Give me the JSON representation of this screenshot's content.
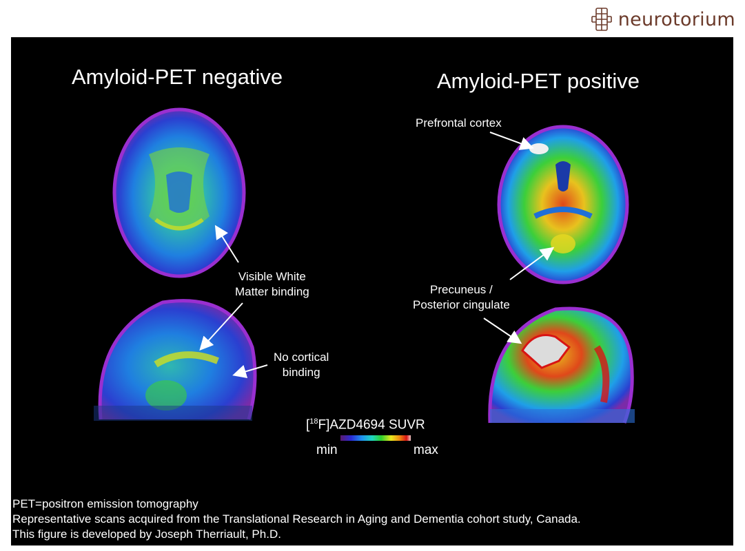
{
  "brand": {
    "name": "neurotorium",
    "icon": "neurotorium-logo-icon",
    "color": "#6b3a2a"
  },
  "titles": {
    "negative": "Amyloid-PET negative",
    "positive": "Amyloid-PET positive"
  },
  "annotations": {
    "white_matter": [
      "Visible White",
      "Matter binding"
    ],
    "no_cortical": [
      "No cortical",
      "binding"
    ],
    "prefrontal": "Prefrontal cortex",
    "precuneus": [
      "Precuneus /",
      "Posterior cingulate"
    ]
  },
  "scale": {
    "title_pre": "[",
    "title_sup": "18",
    "title_post": "F]AZD4694 SUVR",
    "min": "min",
    "max": "max",
    "colors": [
      "#5a1a6e",
      "#2b2bd6",
      "#1f8ff0",
      "#1fd6c0",
      "#2ed12e",
      "#e8e81e",
      "#f08a12",
      "#d81414",
      "#f0c8c8"
    ]
  },
  "footnotes": [
    "PET=positron emission tomography",
    "Representative scans acquired from the Translational Research in Aging and Dementia cohort study, Canada.",
    "This figure is developed by Joseph Therriault, Ph.D."
  ]
}
